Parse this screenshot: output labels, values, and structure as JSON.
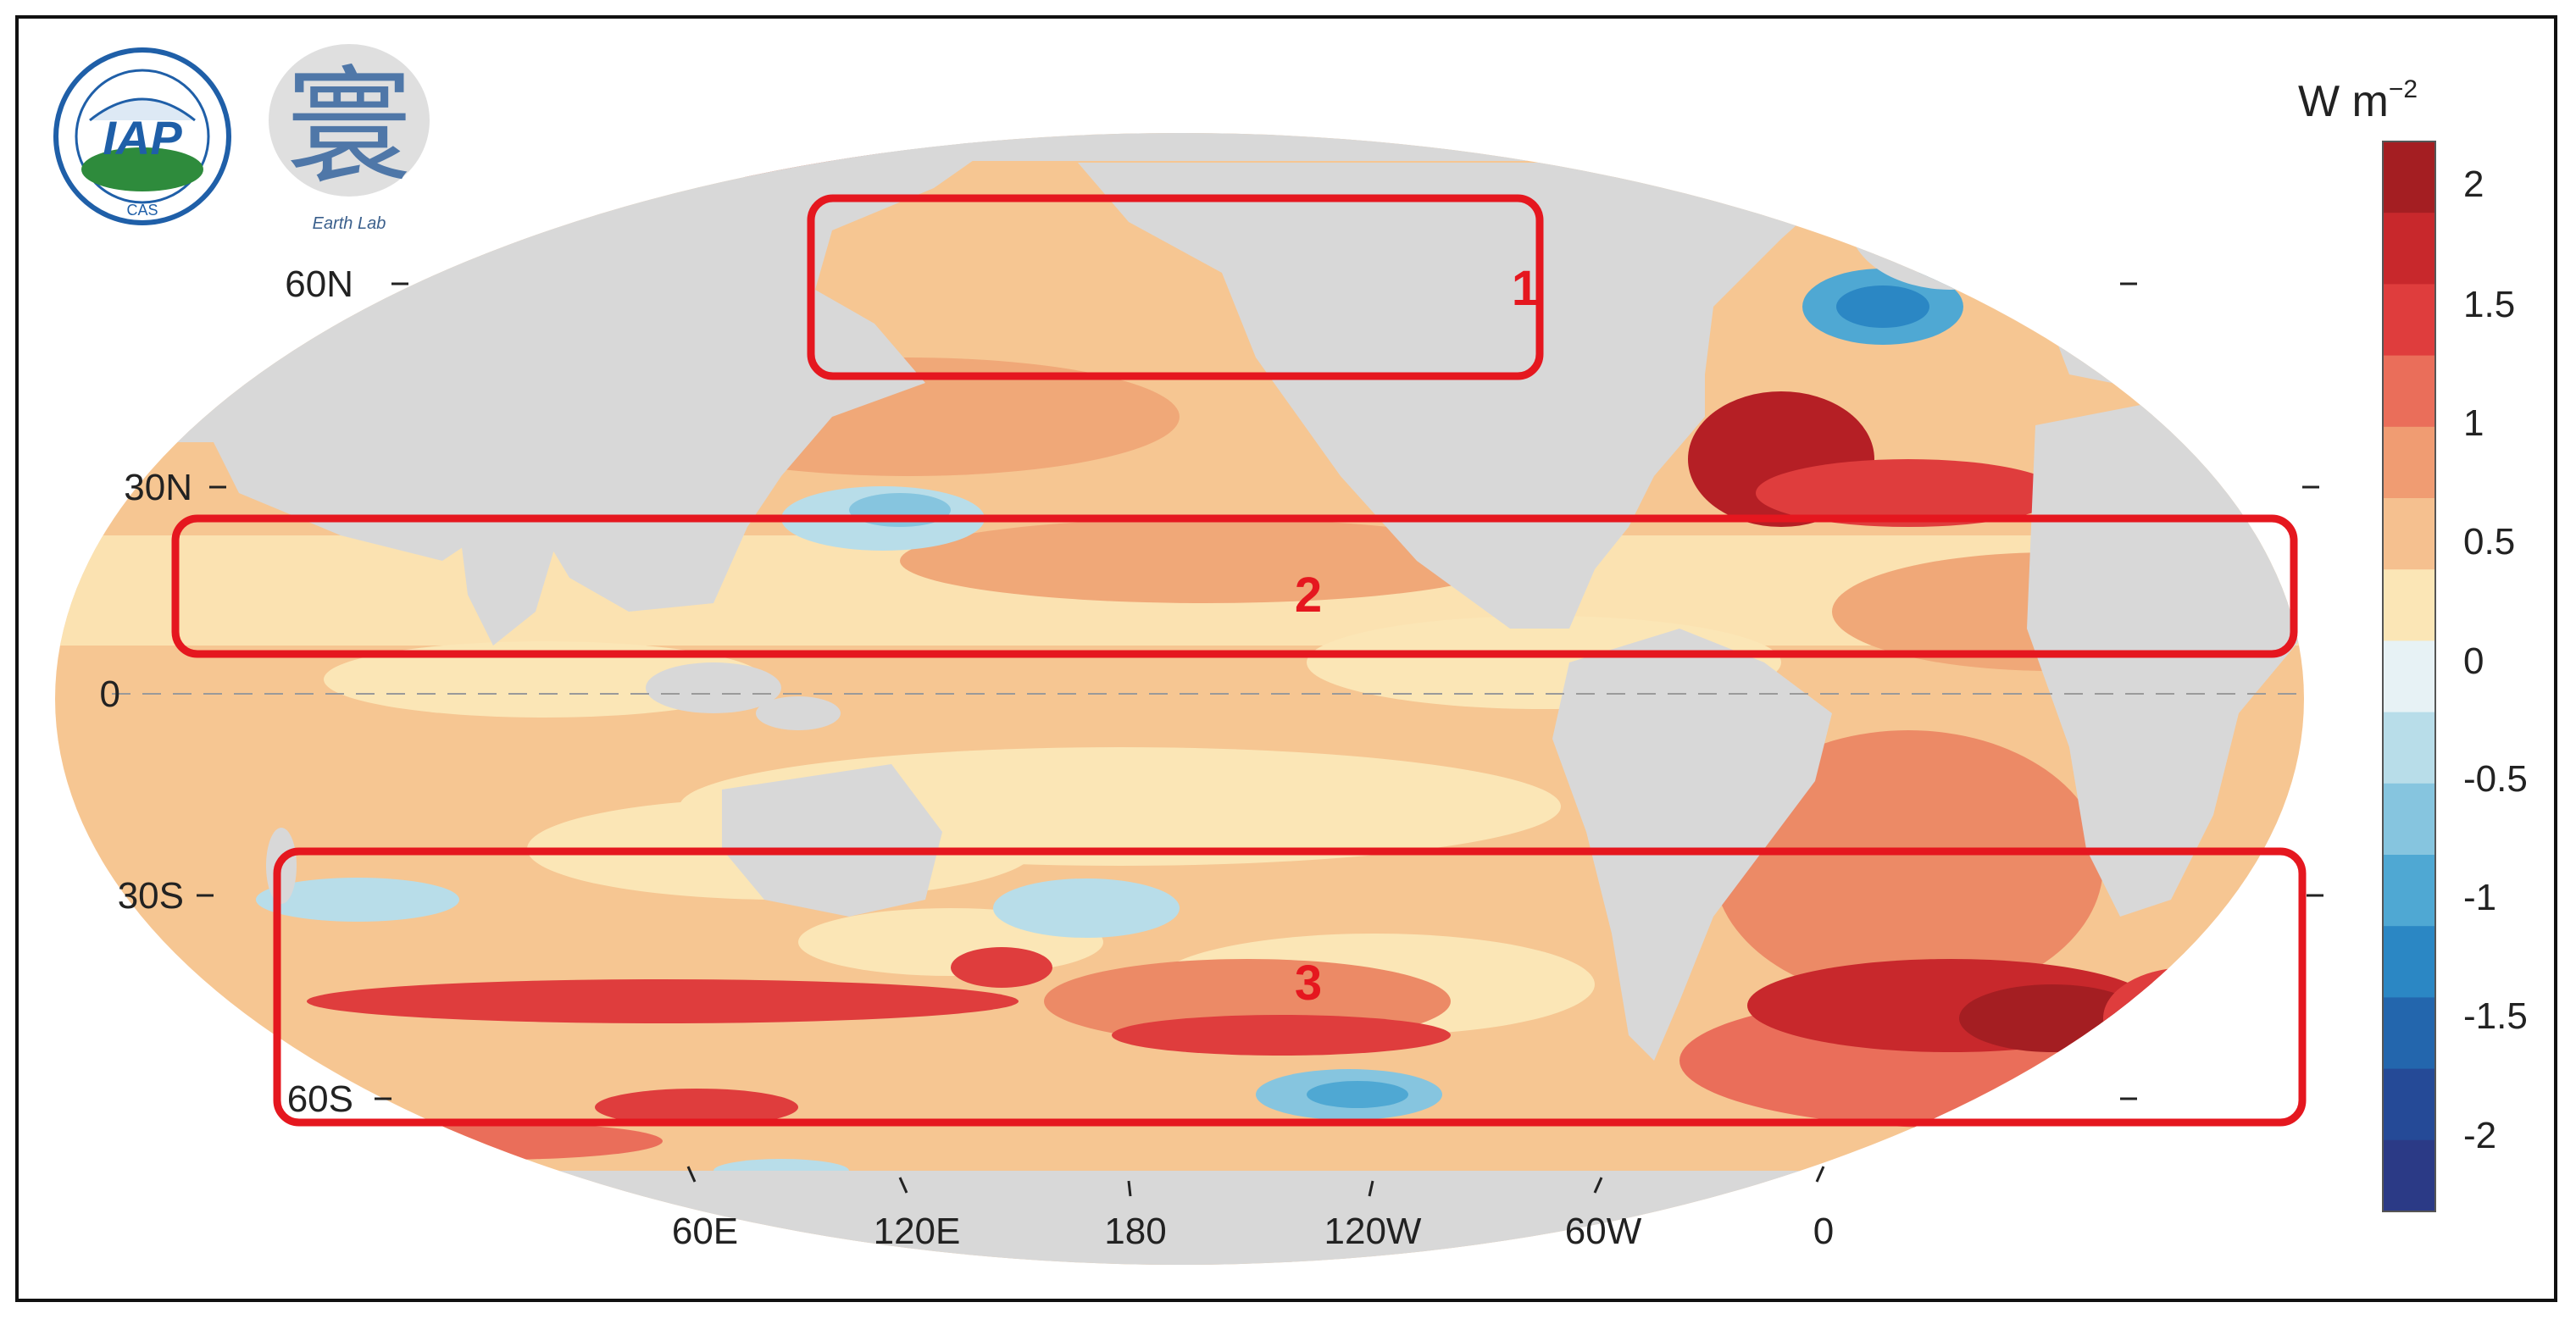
{
  "logos": {
    "iap": {
      "text": "IAP",
      "ring_text": "CAS"
    },
    "earthlab": {
      "glyph": "寰",
      "text": "Earth Lab"
    }
  },
  "map": {
    "latitude_labels": [
      "60N",
      "30N",
      "0",
      "30S",
      "60S"
    ],
    "longitude_labels": [
      "60E",
      "120E",
      "180",
      "120W",
      "60W",
      "0"
    ]
  },
  "colorbar": {
    "unit_main": "W m",
    "unit_exp": "−2",
    "tick_labels": [
      "2",
      "1.5",
      "1",
      "0.5",
      "0",
      "-0.5",
      "-1",
      "-1.5",
      "-2"
    ],
    "colors": [
      "#a41e22",
      "#c8282c",
      "#df3d3d",
      "#ea6e5a",
      "#f09c72",
      "#f5c08f",
      "#fbe6b6",
      "#e7f2f5",
      "#b8dde9",
      "#86c5df",
      "#4fa8d3",
      "#2b87c4",
      "#2366ad",
      "#254a97",
      "#2b3a86"
    ]
  },
  "regions": [
    {
      "label": "1"
    },
    {
      "label": "2"
    },
    {
      "label": "3"
    }
  ],
  "colors": {
    "land": "#d8d8d8",
    "box": "#e5171f",
    "ocean_base": "#f6c692"
  }
}
